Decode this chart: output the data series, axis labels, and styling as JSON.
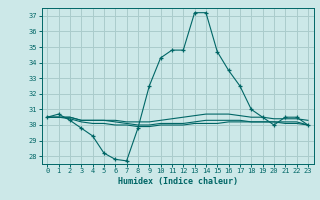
{
  "xlabel": "Humidex (Indice chaleur)",
  "background_color": "#cce8e8",
  "grid_color": "#aacccc",
  "line_color": "#006666",
  "xlim": [
    -0.5,
    23.5
  ],
  "ylim": [
    27.5,
    37.5
  ],
  "yticks": [
    28,
    29,
    30,
    31,
    32,
    33,
    34,
    35,
    36,
    37
  ],
  "xticks": [
    0,
    1,
    2,
    3,
    4,
    5,
    6,
    7,
    8,
    9,
    10,
    11,
    12,
    13,
    14,
    15,
    16,
    17,
    18,
    19,
    20,
    21,
    22,
    23
  ],
  "series": [
    {
      "x": [
        0,
        1,
        2,
        3,
        4,
        5,
        6,
        7,
        8,
        9,
        10,
        11,
        12,
        13,
        14,
        15,
        16,
        17,
        18,
        19,
        20,
        21,
        22,
        23
      ],
      "y": [
        30.5,
        30.7,
        30.3,
        29.8,
        29.3,
        28.2,
        27.8,
        27.7,
        29.8,
        32.5,
        34.3,
        34.8,
        34.8,
        37.2,
        37.2,
        34.7,
        33.5,
        32.5,
        31.0,
        30.5,
        30.0,
        30.5,
        30.5,
        30.0
      ],
      "marker": "+"
    },
    {
      "x": [
        0,
        1,
        2,
        3,
        4,
        5,
        6,
        7,
        8,
        9,
        10,
        11,
        12,
        13,
        14,
        15,
        16,
        17,
        18,
        19,
        20,
        21,
        22,
        23
      ],
      "y": [
        30.5,
        30.5,
        30.5,
        30.3,
        30.3,
        30.3,
        30.3,
        30.2,
        30.2,
        30.2,
        30.3,
        30.4,
        30.5,
        30.6,
        30.7,
        30.7,
        30.7,
        30.6,
        30.5,
        30.5,
        30.4,
        30.4,
        30.4,
        30.3
      ],
      "marker": null
    },
    {
      "x": [
        0,
        1,
        2,
        3,
        4,
        5,
        6,
        7,
        8,
        9,
        10,
        11,
        12,
        13,
        14,
        15,
        16,
        17,
        18,
        19,
        20,
        21,
        22,
        23
      ],
      "y": [
        30.5,
        30.5,
        30.5,
        30.3,
        30.3,
        30.3,
        30.2,
        30.1,
        30.0,
        30.0,
        30.1,
        30.1,
        30.1,
        30.2,
        30.3,
        30.3,
        30.3,
        30.3,
        30.2,
        30.2,
        30.2,
        30.1,
        30.1,
        30.0
      ],
      "marker": null
    },
    {
      "x": [
        0,
        1,
        2,
        3,
        4,
        5,
        6,
        7,
        8,
        9,
        10,
        11,
        12,
        13,
        14,
        15,
        16,
        17,
        18,
        19,
        20,
        21,
        22,
        23
      ],
      "y": [
        30.5,
        30.5,
        30.4,
        30.2,
        30.1,
        30.1,
        30.0,
        30.0,
        29.9,
        29.9,
        30.0,
        30.0,
        30.0,
        30.1,
        30.1,
        30.1,
        30.2,
        30.2,
        30.2,
        30.2,
        30.2,
        30.2,
        30.2,
        30.0
      ],
      "marker": null
    }
  ]
}
